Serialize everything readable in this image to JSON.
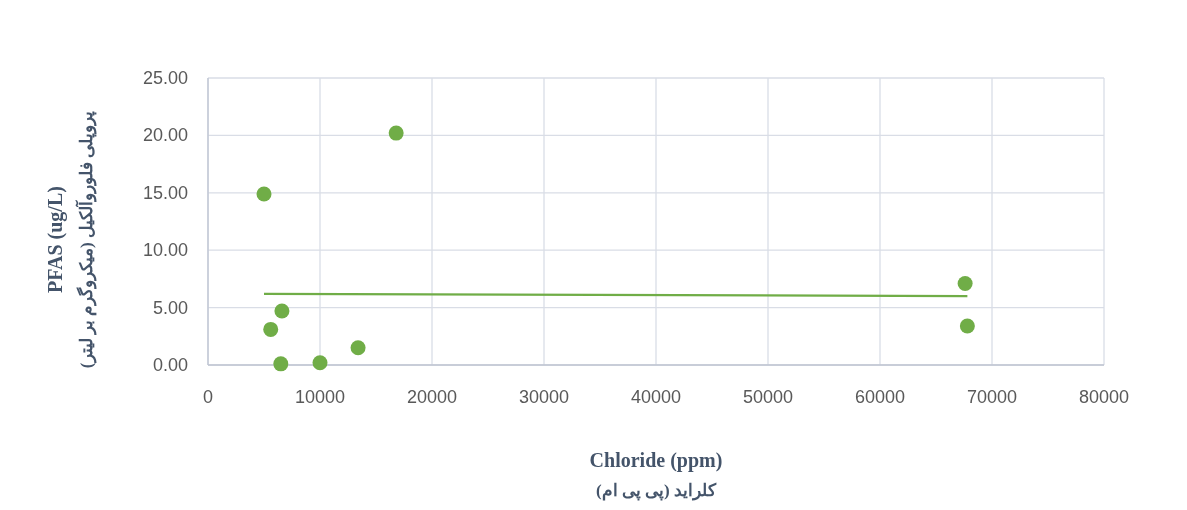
{
  "chart_data": {
    "type": "scatter",
    "xlabel": "Chloride (ppm)\nکلراید (پی پی ام)",
    "ylabel": "PFAS (ug/L)\nپروپلی فلوروآلکیل (میکروگرم بر لیتر)",
    "xlim": [
      0,
      80000
    ],
    "xticks": [
      0,
      10000,
      20000,
      30000,
      40000,
      50000,
      60000,
      70000,
      80000
    ],
    "ylim": [
      0,
      25
    ],
    "yticks": [
      {
        "value": 0,
        "label": "0.00"
      },
      {
        "value": 5,
        "label": "5.00"
      },
      {
        "value": 10,
        "label": "10.00"
      },
      {
        "value": 15,
        "label": "15.00"
      },
      {
        "value": 20,
        "label": "20.00"
      },
      {
        "value": 25,
        "label": "25.00"
      }
    ],
    "grid": true,
    "series": [
      {
        "color": "#70ad47",
        "marker": "circle",
        "x": [
          6500,
          10000,
          13400,
          5600,
          6600,
          5000,
          16800,
          67600,
          67800
        ],
        "values": [
          0.1,
          0.2,
          1.5,
          3.1,
          4.7,
          14.9,
          20.2,
          7.1,
          3.4
        ]
      },
      {
        "type": "line",
        "color": "#70ad47",
        "marker": "none",
        "x": [
          5000,
          67800
        ],
        "values": [
          6.2,
          6.0
        ]
      }
    ]
  }
}
